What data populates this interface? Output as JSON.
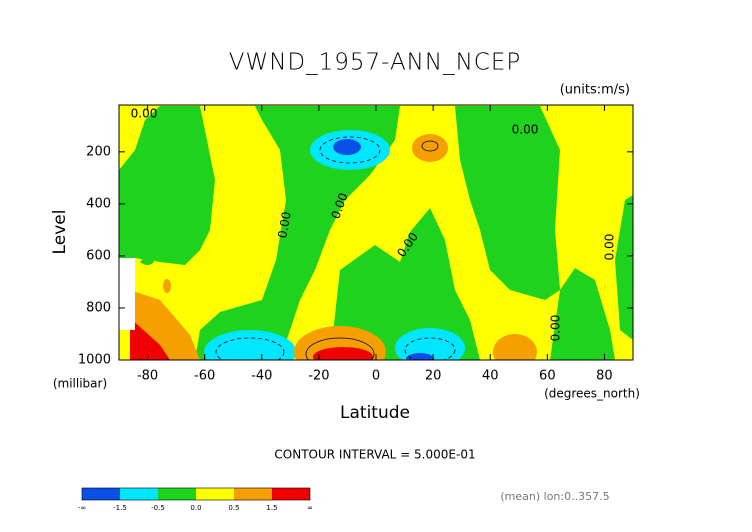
{
  "chart_data": {
    "type": "contour",
    "title": "VWND_1957-ANN_NCEP",
    "units": "(units:m/s)",
    "x_label": "Latitude",
    "x_units": "(degrees_north)",
    "y_label": "Level",
    "y_units": "(millibar)",
    "xlim": [
      -90,
      90
    ],
    "xticks": [
      -80,
      -60,
      -40,
      -20,
      0,
      20,
      40,
      60,
      80
    ],
    "ylim": [
      1000,
      20
    ],
    "yticks": [
      200,
      400,
      600,
      800,
      1000
    ],
    "contour_label": "0.00",
    "contour_interval": "CONTOUR INTERVAL = 5.000E-01",
    "colorbar": {
      "colors": [
        "#0a50e6",
        "#00e6ff",
        "#1ed21e",
        "#ffff00",
        "#f5a000",
        "#f00000"
      ],
      "labels": [
        "-∞",
        "-1.5",
        "-0.5",
        "0.0",
        "0.5",
        "1.5",
        "∞"
      ]
    },
    "footer": "(mean) lon:0..357.5"
  }
}
